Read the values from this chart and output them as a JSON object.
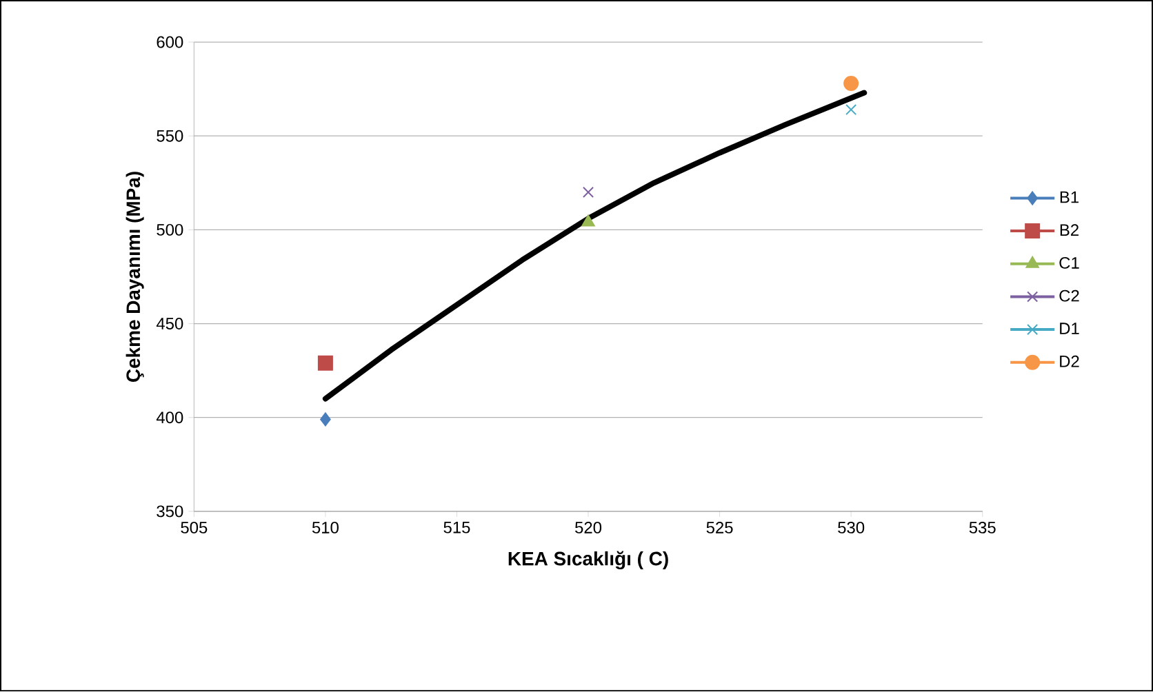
{
  "chart_data": {
    "type": "scatter",
    "xlabel": "KEA Sıcaklığı ( C)",
    "ylabel": "Çekme Dayanımı (MPa)",
    "xlim": [
      505,
      535
    ],
    "xticks": [
      505,
      510,
      515,
      520,
      525,
      530,
      535
    ],
    "ylim": [
      350,
      600
    ],
    "yticks": [
      350,
      400,
      450,
      500,
      550,
      600
    ],
    "grid": "y",
    "legend": "right",
    "series": [
      {
        "name": "B1",
        "color": "#4a7ebb",
        "marker": "diamond",
        "x": [
          510
        ],
        "values": [
          399
        ]
      },
      {
        "name": "B2",
        "color": "#be4b48",
        "marker": "square",
        "x": [
          510
        ],
        "values": [
          429
        ]
      },
      {
        "name": "C1",
        "color": "#98b954",
        "marker": "triangle",
        "x": [
          520
        ],
        "values": [
          504
        ]
      },
      {
        "name": "C2",
        "color": "#7d60a0",
        "marker": "cross",
        "x": [
          520
        ],
        "values": [
          520
        ]
      },
      {
        "name": "D1",
        "color": "#46aac5",
        "marker": "cross",
        "x": [
          530
        ],
        "values": [
          564
        ]
      },
      {
        "name": "D2",
        "color": "#f79646",
        "marker": "circle",
        "x": [
          530
        ],
        "values": [
          578
        ]
      },
      {
        "type": "line",
        "color": "#000000",
        "marker": "none",
        "x": [
          510,
          512.5,
          515,
          517.5,
          520,
          522.5,
          525,
          527.5,
          530.5
        ],
        "values": [
          410,
          436,
          460,
          484,
          506,
          525,
          541,
          556,
          573
        ]
      }
    ]
  }
}
